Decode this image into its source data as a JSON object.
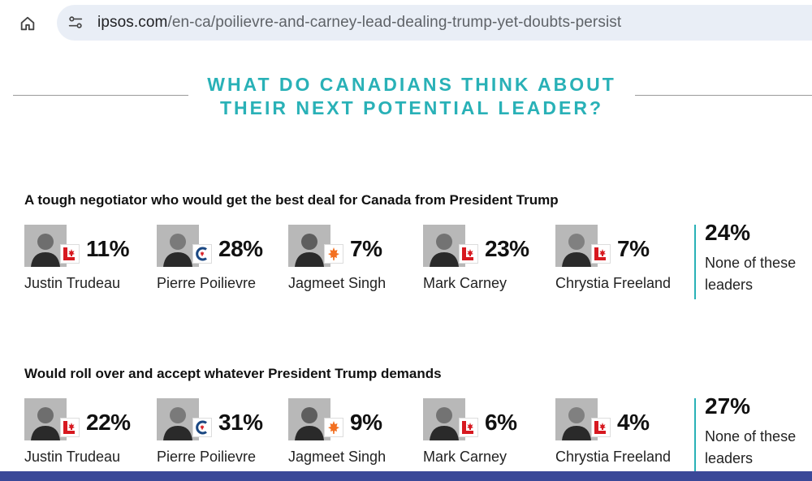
{
  "browser": {
    "url_host": "ipsos.com",
    "url_path": "/en-ca/poilievre-and-carney-lead-dealing-trump-yet-doubts-persist"
  },
  "page": {
    "title_line1": "WHAT DO CANADIANS THINK ABOUT",
    "title_line2": "THEIR NEXT POTENTIAL LEADER?"
  },
  "sections": [
    {
      "question": "A tough negotiator who would get the best deal for Canada from President Trump",
      "leaders": [
        {
          "name": "Justin Trudeau",
          "party": "liberal",
          "value": "11%"
        },
        {
          "name": "Pierre Poilievre",
          "party": "conservative",
          "value": "28%"
        },
        {
          "name": "Jagmeet Singh",
          "party": "ndp",
          "value": "7%"
        },
        {
          "name": "Mark Carney",
          "party": "liberal",
          "value": "23%"
        },
        {
          "name": "Chrystia Freeland",
          "party": "liberal",
          "value": "7%"
        }
      ],
      "none": {
        "value": "24%",
        "label": "None of these leaders"
      }
    },
    {
      "question": "Would roll over and accept whatever President Trump demands",
      "leaders": [
        {
          "name": "Justin Trudeau",
          "party": "liberal",
          "value": "22%"
        },
        {
          "name": "Pierre Poilievre",
          "party": "conservative",
          "value": "31%"
        },
        {
          "name": "Jagmeet Singh",
          "party": "ndp",
          "value": "9%"
        },
        {
          "name": "Mark Carney",
          "party": "liberal",
          "value": "6%"
        },
        {
          "name": "Chrystia Freeland",
          "party": "liberal",
          "value": "4%"
        }
      ],
      "none": {
        "value": "27%",
        "label": "None of these leaders"
      }
    }
  ],
  "icons": {
    "home": "home-icon",
    "site_info": "site-info-icon",
    "liberal": "liberal-party-logo-icon",
    "conservative": "conservative-party-logo-icon",
    "ndp": "ndp-party-logo-icon"
  },
  "colors": {
    "accent": "#29b1b7",
    "liberal_red": "#d71920",
    "conservative_blue": "#1a4782",
    "ndp_orange": "#f37021",
    "footer": "#3a4898"
  }
}
